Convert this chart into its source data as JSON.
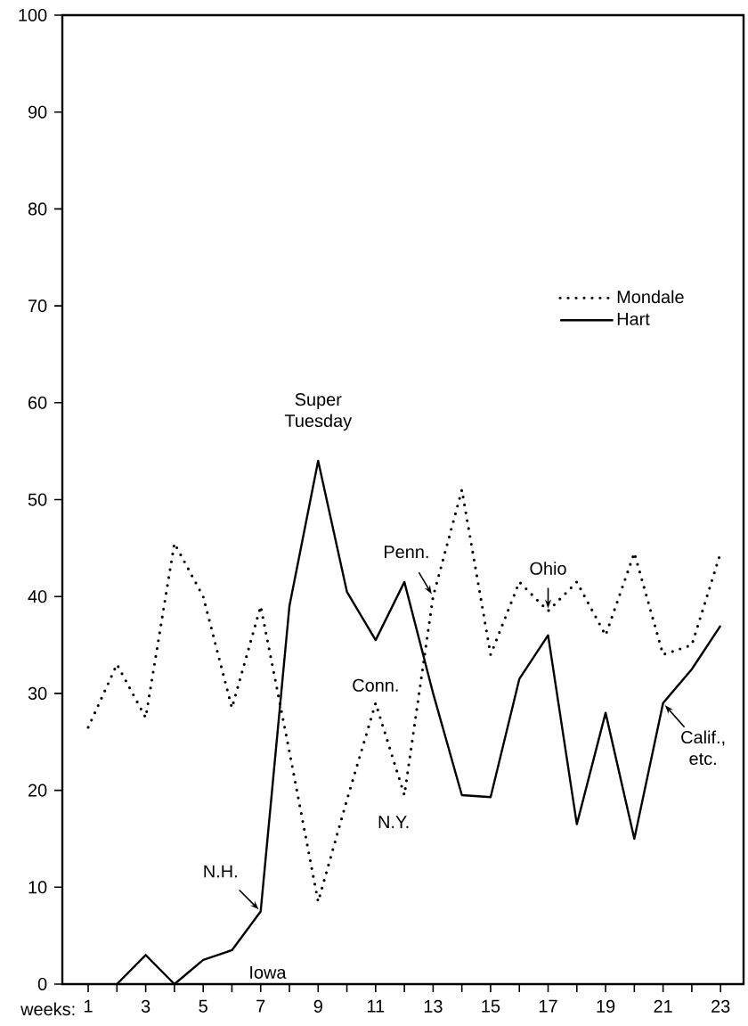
{
  "chart_data": {
    "type": "line",
    "xlabel": "weeks:",
    "x": [
      1,
      2,
      3,
      4,
      5,
      6,
      7,
      8,
      9,
      10,
      11,
      12,
      13,
      14,
      15,
      16,
      17,
      18,
      19,
      20,
      21,
      22,
      23
    ],
    "series": [
      {
        "name": "Mondale",
        "color": "#000000",
        "line_style": "dotted",
        "values": [
          26.5,
          33,
          27.5,
          45.5,
          40,
          28.5,
          39,
          24,
          8.5,
          19,
          29,
          19.5,
          40,
          51,
          34,
          41.5,
          38.5,
          41.5,
          36,
          44.5,
          34,
          35,
          44.5
        ]
      },
      {
        "name": "Hart",
        "color": "#000000",
        "line_style": "solid",
        "values": [
          null,
          0,
          3,
          0,
          2.5,
          3.5,
          7.5,
          39,
          54,
          40.5,
          35.5,
          41.5,
          30,
          19.5,
          19.3,
          31.5,
          36,
          16.5,
          28,
          15,
          29,
          32.5,
          37
        ]
      }
    ],
    "xlim": [
      0.1,
      23.8
    ],
    "ylim": [
      0,
      100
    ],
    "xticks": [
      1,
      {
        "value": 2,
        "label": null
      },
      3,
      {
        "value": 4,
        "label": null
      },
      5,
      {
        "value": 6,
        "label": null
      },
      7,
      {
        "value": 8,
        "label": null
      },
      9,
      {
        "value": 10,
        "label": null
      },
      11,
      {
        "value": 12,
        "label": null
      },
      13,
      {
        "value": 14,
        "label": null
      },
      15,
      {
        "value": 16,
        "label": null
      },
      17,
      {
        "value": 18,
        "label": null
      },
      19,
      {
        "value": 20,
        "label": null
      },
      21,
      {
        "value": 22,
        "label": null
      },
      23
    ],
    "yticks": [
      0,
      10,
      20,
      30,
      40,
      50,
      60,
      70,
      80,
      90,
      100
    ],
    "grid": false,
    "legend": "top right",
    "marker": "none",
    "annotations": [
      {
        "text": "Super Tuesday",
        "x": 9,
        "y": 54
      },
      {
        "text": "N.H.",
        "x": 7,
        "y": 7.5
      },
      {
        "text": "Iowa",
        "x": 6,
        "y": 3.5
      },
      {
        "text": "Conn.",
        "x": 11,
        "y": 29
      },
      {
        "text": "N.Y.",
        "x": 12,
        "y": 19.5
      },
      {
        "text": "Penn.",
        "x": 13,
        "y": 40
      },
      {
        "text": "Ohio",
        "x": 17,
        "y": 38.5
      },
      {
        "text": "Calif., etc.",
        "x": 21,
        "y": 29
      }
    ]
  }
}
